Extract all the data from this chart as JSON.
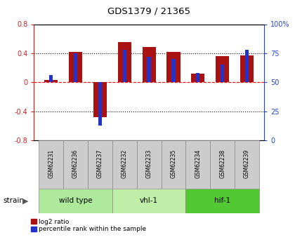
{
  "title": "GDS1379 / 21365",
  "samples": [
    "GSM62231",
    "GSM62236",
    "GSM62237",
    "GSM62232",
    "GSM62233",
    "GSM62235",
    "GSM62234",
    "GSM62238",
    "GSM62239"
  ],
  "log2_ratio": [
    0.03,
    0.42,
    -0.48,
    0.55,
    0.49,
    0.42,
    0.12,
    0.36,
    0.37
  ],
  "percentile_rank": [
    56,
    75,
    13,
    78,
    72,
    70,
    58,
    65,
    78
  ],
  "groups": [
    {
      "label": "wild type",
      "start": 0,
      "end": 3,
      "color": "#aee89a"
    },
    {
      "label": "vhl-1",
      "start": 3,
      "end": 6,
      "color": "#c0eea8"
    },
    {
      "label": "hif-1",
      "start": 6,
      "end": 9,
      "color": "#52c832"
    }
  ],
  "ylim_left": [
    -0.8,
    0.8
  ],
  "ylim_right": [
    0,
    100
  ],
  "yticks_left": [
    -0.8,
    -0.4,
    0.0,
    0.4,
    0.8
  ],
  "ytick_labels_left": [
    "-0.8",
    "-0.4",
    "0",
    "0.4",
    "0.8"
  ],
  "yticks_right": [
    0,
    25,
    50,
    75,
    100
  ],
  "ytick_labels_right": [
    "0",
    "25",
    "50",
    "75",
    "100%"
  ],
  "hlines_dotted": [
    -0.4,
    0.4
  ],
  "bar_color_red": "#aa1111",
  "bar_color_blue": "#2233cc",
  "red_bar_width": 0.55,
  "blue_bar_width": 0.15,
  "bg_color": "#ffffff",
  "legend_red_label": "log2 ratio",
  "legend_blue_label": "percentile rank within the sample",
  "strain_label": "strain",
  "left_axis_color": "#cc2222",
  "right_axis_color": "#2244cc",
  "plot_bg_color": "#ffffff"
}
